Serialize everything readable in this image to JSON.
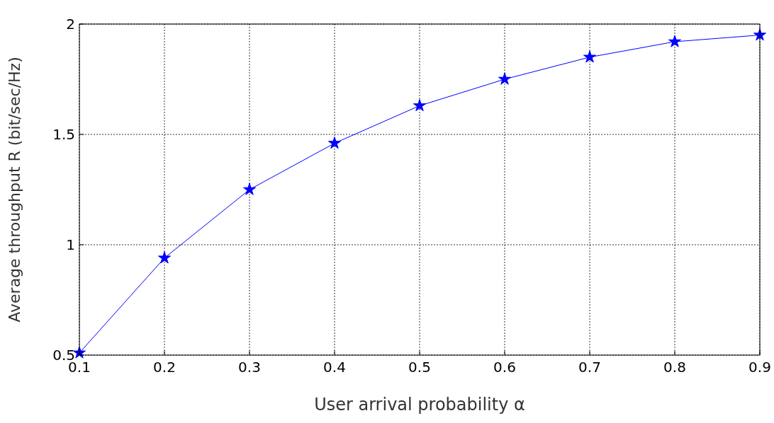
{
  "chart_data": {
    "type": "line",
    "xlabel": "User arrival probability α",
    "ylabel": "Average throughput R (bit/sec/Hz)",
    "x": [
      0.1,
      0.2,
      0.3,
      0.4,
      0.5,
      0.6,
      0.7,
      0.8,
      0.9
    ],
    "series": [
      {
        "color": "#0000ff",
        "values": [
          0.51,
          0.94,
          1.25,
          1.46,
          1.63,
          1.75,
          1.85,
          1.92,
          1.95
        ]
      }
    ],
    "xlim": [
      0.1,
      0.9
    ],
    "xticks": [
      0.1,
      0.2,
      0.3,
      0.4,
      0.5,
      0.6,
      0.7,
      0.8,
      0.9
    ],
    "ylim": [
      0.5,
      2
    ],
    "yticks": [
      0.5,
      1,
      1.5,
      2
    ],
    "grid": true,
    "marker": "star",
    "line_style": "solid"
  }
}
